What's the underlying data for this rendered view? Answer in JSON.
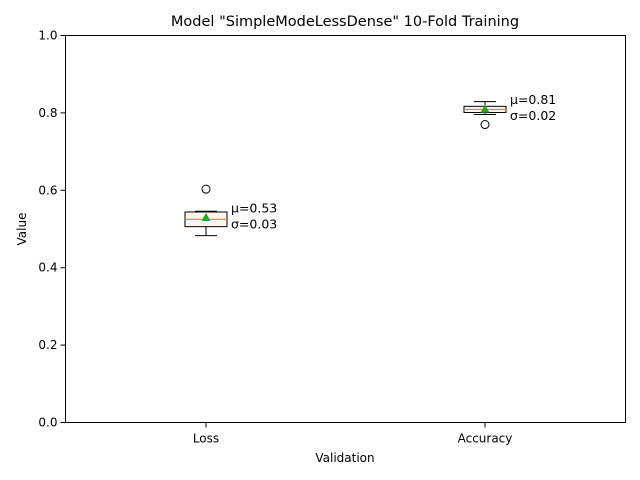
{
  "chart_data": {
    "type": "box",
    "title": "Model \"SimpleModeLessDense\" 10-Fold Training",
    "xlabel": "Validation",
    "ylabel": "Value",
    "ylim": [
      0,
      1
    ],
    "yticks": [
      "0.0",
      "0.2",
      "0.4",
      "0.6",
      "0.8",
      "1.0"
    ],
    "grid": false,
    "categories": [
      "Loss",
      "Accuracy"
    ],
    "boxes": [
      {
        "category": "Loss",
        "whisker_low": 0.483,
        "q1": 0.506,
        "median": 0.525,
        "q3": 0.544,
        "whisker_high": 0.546,
        "mean": 0.53,
        "outliers": [
          0.603
        ],
        "annotation_mean": "μ=0.53",
        "annotation_std": "σ=0.03"
      },
      {
        "category": "Accuracy",
        "whisker_low": 0.796,
        "q1": 0.801,
        "median": 0.809,
        "q3": 0.817,
        "whisker_high": 0.829,
        "mean": 0.81,
        "outliers": [
          0.77
        ],
        "annotation_mean": "μ=0.81",
        "annotation_std": "σ=0.02"
      }
    ],
    "colors": {
      "box": "#000000",
      "median": "#ff7f0e",
      "mean": "#2ca02c",
      "box_fill": "#fdf6ee"
    }
  }
}
